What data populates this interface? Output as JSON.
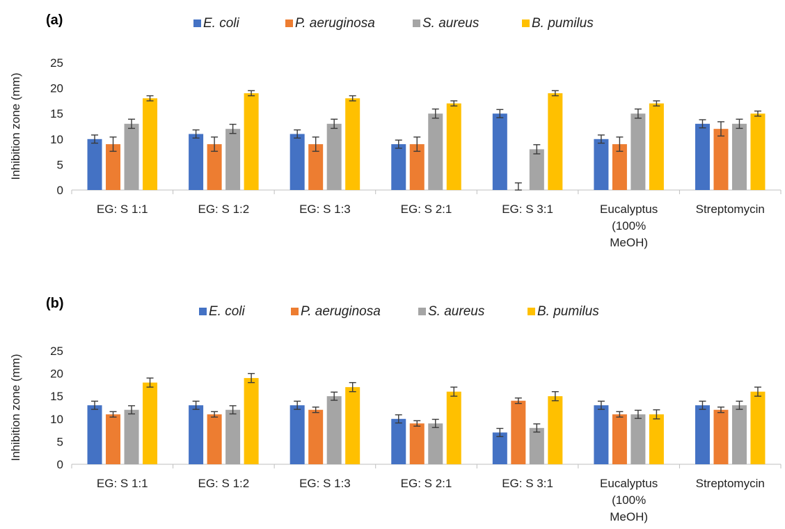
{
  "chart_data": [
    {
      "type": "bar",
      "panel_label": "(a)",
      "categories": [
        [
          "EG: S 1:1"
        ],
        [
          "EG: S 1:2"
        ],
        [
          "EG: S 1:3"
        ],
        [
          "EG: S 2:1"
        ],
        [
          "EG: S 3:1"
        ],
        [
          "Eucalyptus",
          "(100%",
          "MeOH)"
        ],
        [
          "Streptomycin"
        ]
      ],
      "ylabel": "Inhibition zone (mm)",
      "ylim": [
        0,
        25
      ],
      "yticks": [
        0,
        5,
        10,
        15,
        20,
        25
      ],
      "grid": false,
      "legend_position": "top",
      "series": [
        {
          "name": "E. coli",
          "color": "#4472C4",
          "values": [
            10,
            11,
            11,
            9,
            15,
            10,
            13
          ],
          "errors": [
            0.8,
            0.8,
            0.8,
            0.8,
            0.8,
            0.8,
            0.8
          ]
        },
        {
          "name": "P. aeruginosa",
          "color": "#ED7D31",
          "values": [
            9,
            9,
            9,
            9,
            0,
            9,
            12
          ],
          "errors": [
            1.4,
            1.4,
            1.4,
            1.4,
            1.4,
            1.4,
            1.4
          ]
        },
        {
          "name": "S. aureus",
          "color": "#A5A5A5",
          "values": [
            13,
            12,
            13,
            15,
            8,
            15,
            13
          ],
          "errors": [
            0.9,
            0.9,
            0.9,
            0.9,
            0.9,
            0.9,
            0.9
          ]
        },
        {
          "name": "B. pumilus",
          "color": "#FFC000",
          "values": [
            18,
            19,
            18,
            17,
            19,
            17,
            15
          ],
          "errors": [
            0.5,
            0.5,
            0.5,
            0.5,
            0.5,
            0.5,
            0.5
          ]
        }
      ]
    },
    {
      "type": "bar",
      "panel_label": "(b)",
      "categories": [
        [
          "EG: S 1:1"
        ],
        [
          "EG: S 1:2"
        ],
        [
          "EG: S 1:3"
        ],
        [
          "EG: S 2:1"
        ],
        [
          "EG: S 3:1"
        ],
        [
          "Eucalyptus",
          "(100%",
          "MeOH)"
        ],
        [
          "Streptomycin"
        ]
      ],
      "ylabel": "Inhibition zone (mm)",
      "ylim": [
        0,
        25
      ],
      "yticks": [
        0,
        5,
        10,
        15,
        20,
        25
      ],
      "grid": false,
      "legend_position": "top",
      "series": [
        {
          "name": "E. coli",
          "color": "#4472C4",
          "values": [
            13,
            13,
            13,
            10,
            7,
            13,
            13
          ],
          "errors": [
            0.9,
            0.9,
            0.9,
            0.9,
            0.9,
            0.9,
            0.9
          ]
        },
        {
          "name": "P. aeruginosa",
          "color": "#ED7D31",
          "values": [
            11,
            11,
            12,
            9,
            14,
            11,
            12
          ],
          "errors": [
            0.6,
            0.6,
            0.6,
            0.6,
            0.6,
            0.6,
            0.6
          ]
        },
        {
          "name": "S. aureus",
          "color": "#A5A5A5",
          "values": [
            12,
            12,
            15,
            9,
            8,
            11,
            13
          ],
          "errors": [
            0.9,
            0.9,
            0.9,
            0.9,
            0.9,
            0.9,
            0.9
          ]
        },
        {
          "name": "B. pumilus",
          "color": "#FFC000",
          "values": [
            18,
            19,
            17,
            16,
            15,
            11,
            16
          ],
          "errors": [
            1.0,
            1.0,
            1.0,
            1.0,
            1.0,
            1.0,
            1.0
          ]
        }
      ]
    }
  ]
}
